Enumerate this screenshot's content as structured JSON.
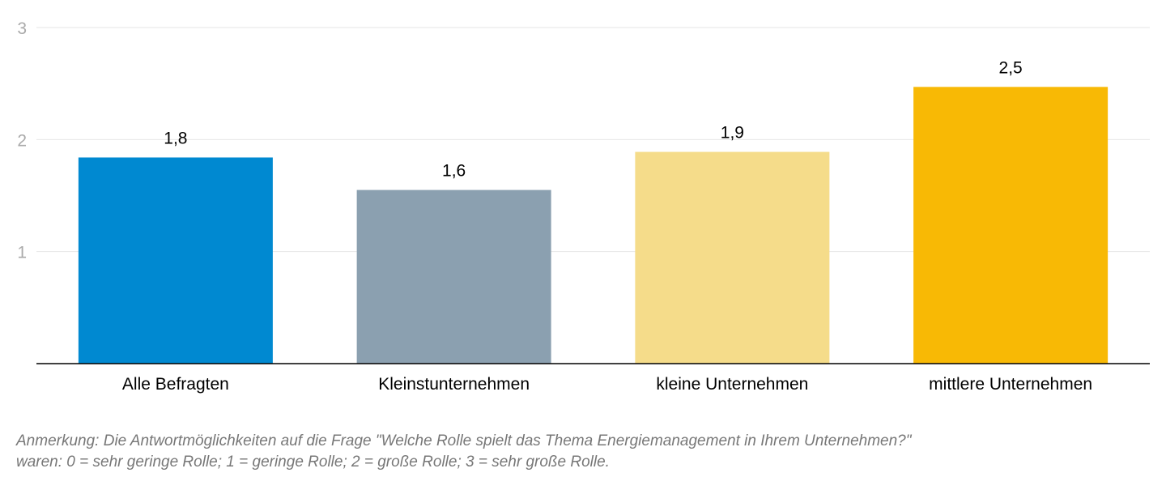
{
  "chart_data": {
    "type": "bar",
    "categories": [
      "Alle Befragten",
      "Kleinstunternehmen",
      "kleine Unternehmen",
      "mittlere Unternehmen"
    ],
    "values": [
      1.84,
      1.55,
      1.89,
      2.47
    ],
    "data_labels": [
      "1,8",
      "1,6",
      "1,9",
      "2,5"
    ],
    "colors": [
      "#0089d1",
      "#8ba0b0",
      "#f5dc8a",
      "#f8b905"
    ],
    "ylim": [
      0,
      3
    ],
    "yticks": [
      1,
      2,
      3
    ],
    "ytick_labels": [
      "1",
      "2",
      "3"
    ],
    "grid": true,
    "title": "",
    "xlabel": "",
    "ylabel": ""
  },
  "note": {
    "line1": "Anmerkung: Die Antwortmöglichkeiten auf die Frage \"Welche Rolle spielt das Thema Energiemanagement in Ihrem Unternehmen?\"",
    "line2": "waren: 0 = sehr geringe Rolle; 1 = geringe Rolle; 2 = große Rolle; 3 = sehr große Rolle."
  }
}
